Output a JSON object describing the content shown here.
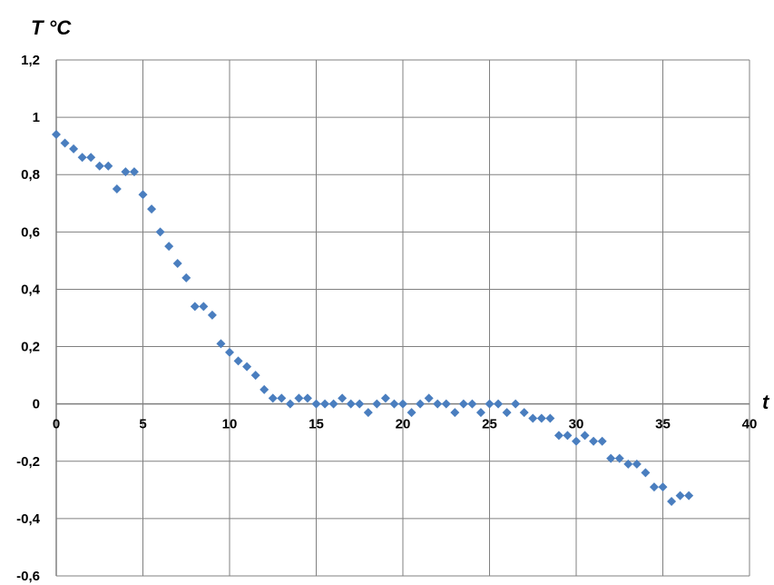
{
  "chart_data": {
    "type": "scatter",
    "title": "",
    "xlabel": "t",
    "ylabel": "T °C",
    "xlim": [
      0,
      40
    ],
    "ylim": [
      -0.6,
      1.2
    ],
    "xticks": [
      "0",
      "5",
      "10",
      "15",
      "20",
      "25",
      "30",
      "35",
      "40"
    ],
    "yticks": [
      "1,2",
      "1",
      "0,8",
      "0,6",
      "0,4",
      "0,2",
      "0",
      "-0,2",
      "-0,4",
      "-0,6"
    ],
    "grid": true,
    "marker_color": "#4a7ebf",
    "series": [
      {
        "x": [
          0,
          0.5,
          1,
          1.5,
          2,
          2.5,
          3,
          3.5,
          4,
          4.5,
          5,
          5.5,
          6,
          6.5,
          7,
          7.5,
          8,
          8.5,
          9,
          9.5,
          10,
          10.5,
          11,
          11.5,
          12,
          12.5,
          13,
          13.5,
          14,
          14.5,
          15,
          15.5,
          16,
          16.5,
          17,
          17.5,
          18,
          18.5,
          19,
          19.5,
          20,
          20.5,
          21,
          21.5,
          22,
          22.5,
          23,
          23.5,
          24,
          24.5,
          25,
          25.5,
          26,
          26.5,
          27,
          27.5,
          28,
          28.5,
          29,
          29.5,
          30,
          30.5,
          31,
          31.5,
          32,
          32.5,
          33,
          33.5,
          34,
          34.5,
          35,
          35.5,
          36,
          36.5
        ],
        "y": [
          0.94,
          0.91,
          0.89,
          0.86,
          0.86,
          0.83,
          0.83,
          0.75,
          0.81,
          0.81,
          0.73,
          0.68,
          0.6,
          0.55,
          0.49,
          0.44,
          0.34,
          0.34,
          0.31,
          0.21,
          0.18,
          0.15,
          0.13,
          0.1,
          0.05,
          0.02,
          0.02,
          0.0,
          0.02,
          0.02,
          0.0,
          0.0,
          0.0,
          0.02,
          0.0,
          0.0,
          -0.03,
          0.0,
          0.02,
          0.0,
          0.0,
          -0.03,
          0.0,
          0.02,
          0.0,
          0.0,
          -0.03,
          0.0,
          0.0,
          -0.03,
          0.0,
          0.0,
          -0.03,
          0.0,
          -0.03,
          -0.05,
          -0.05,
          -0.05,
          -0.11,
          -0.11,
          -0.13,
          -0.11,
          -0.13,
          -0.13,
          -0.19,
          -0.19,
          -0.21,
          -0.21,
          -0.24,
          -0.29,
          -0.29,
          -0.34,
          -0.32,
          -0.32
        ]
      }
    ]
  }
}
